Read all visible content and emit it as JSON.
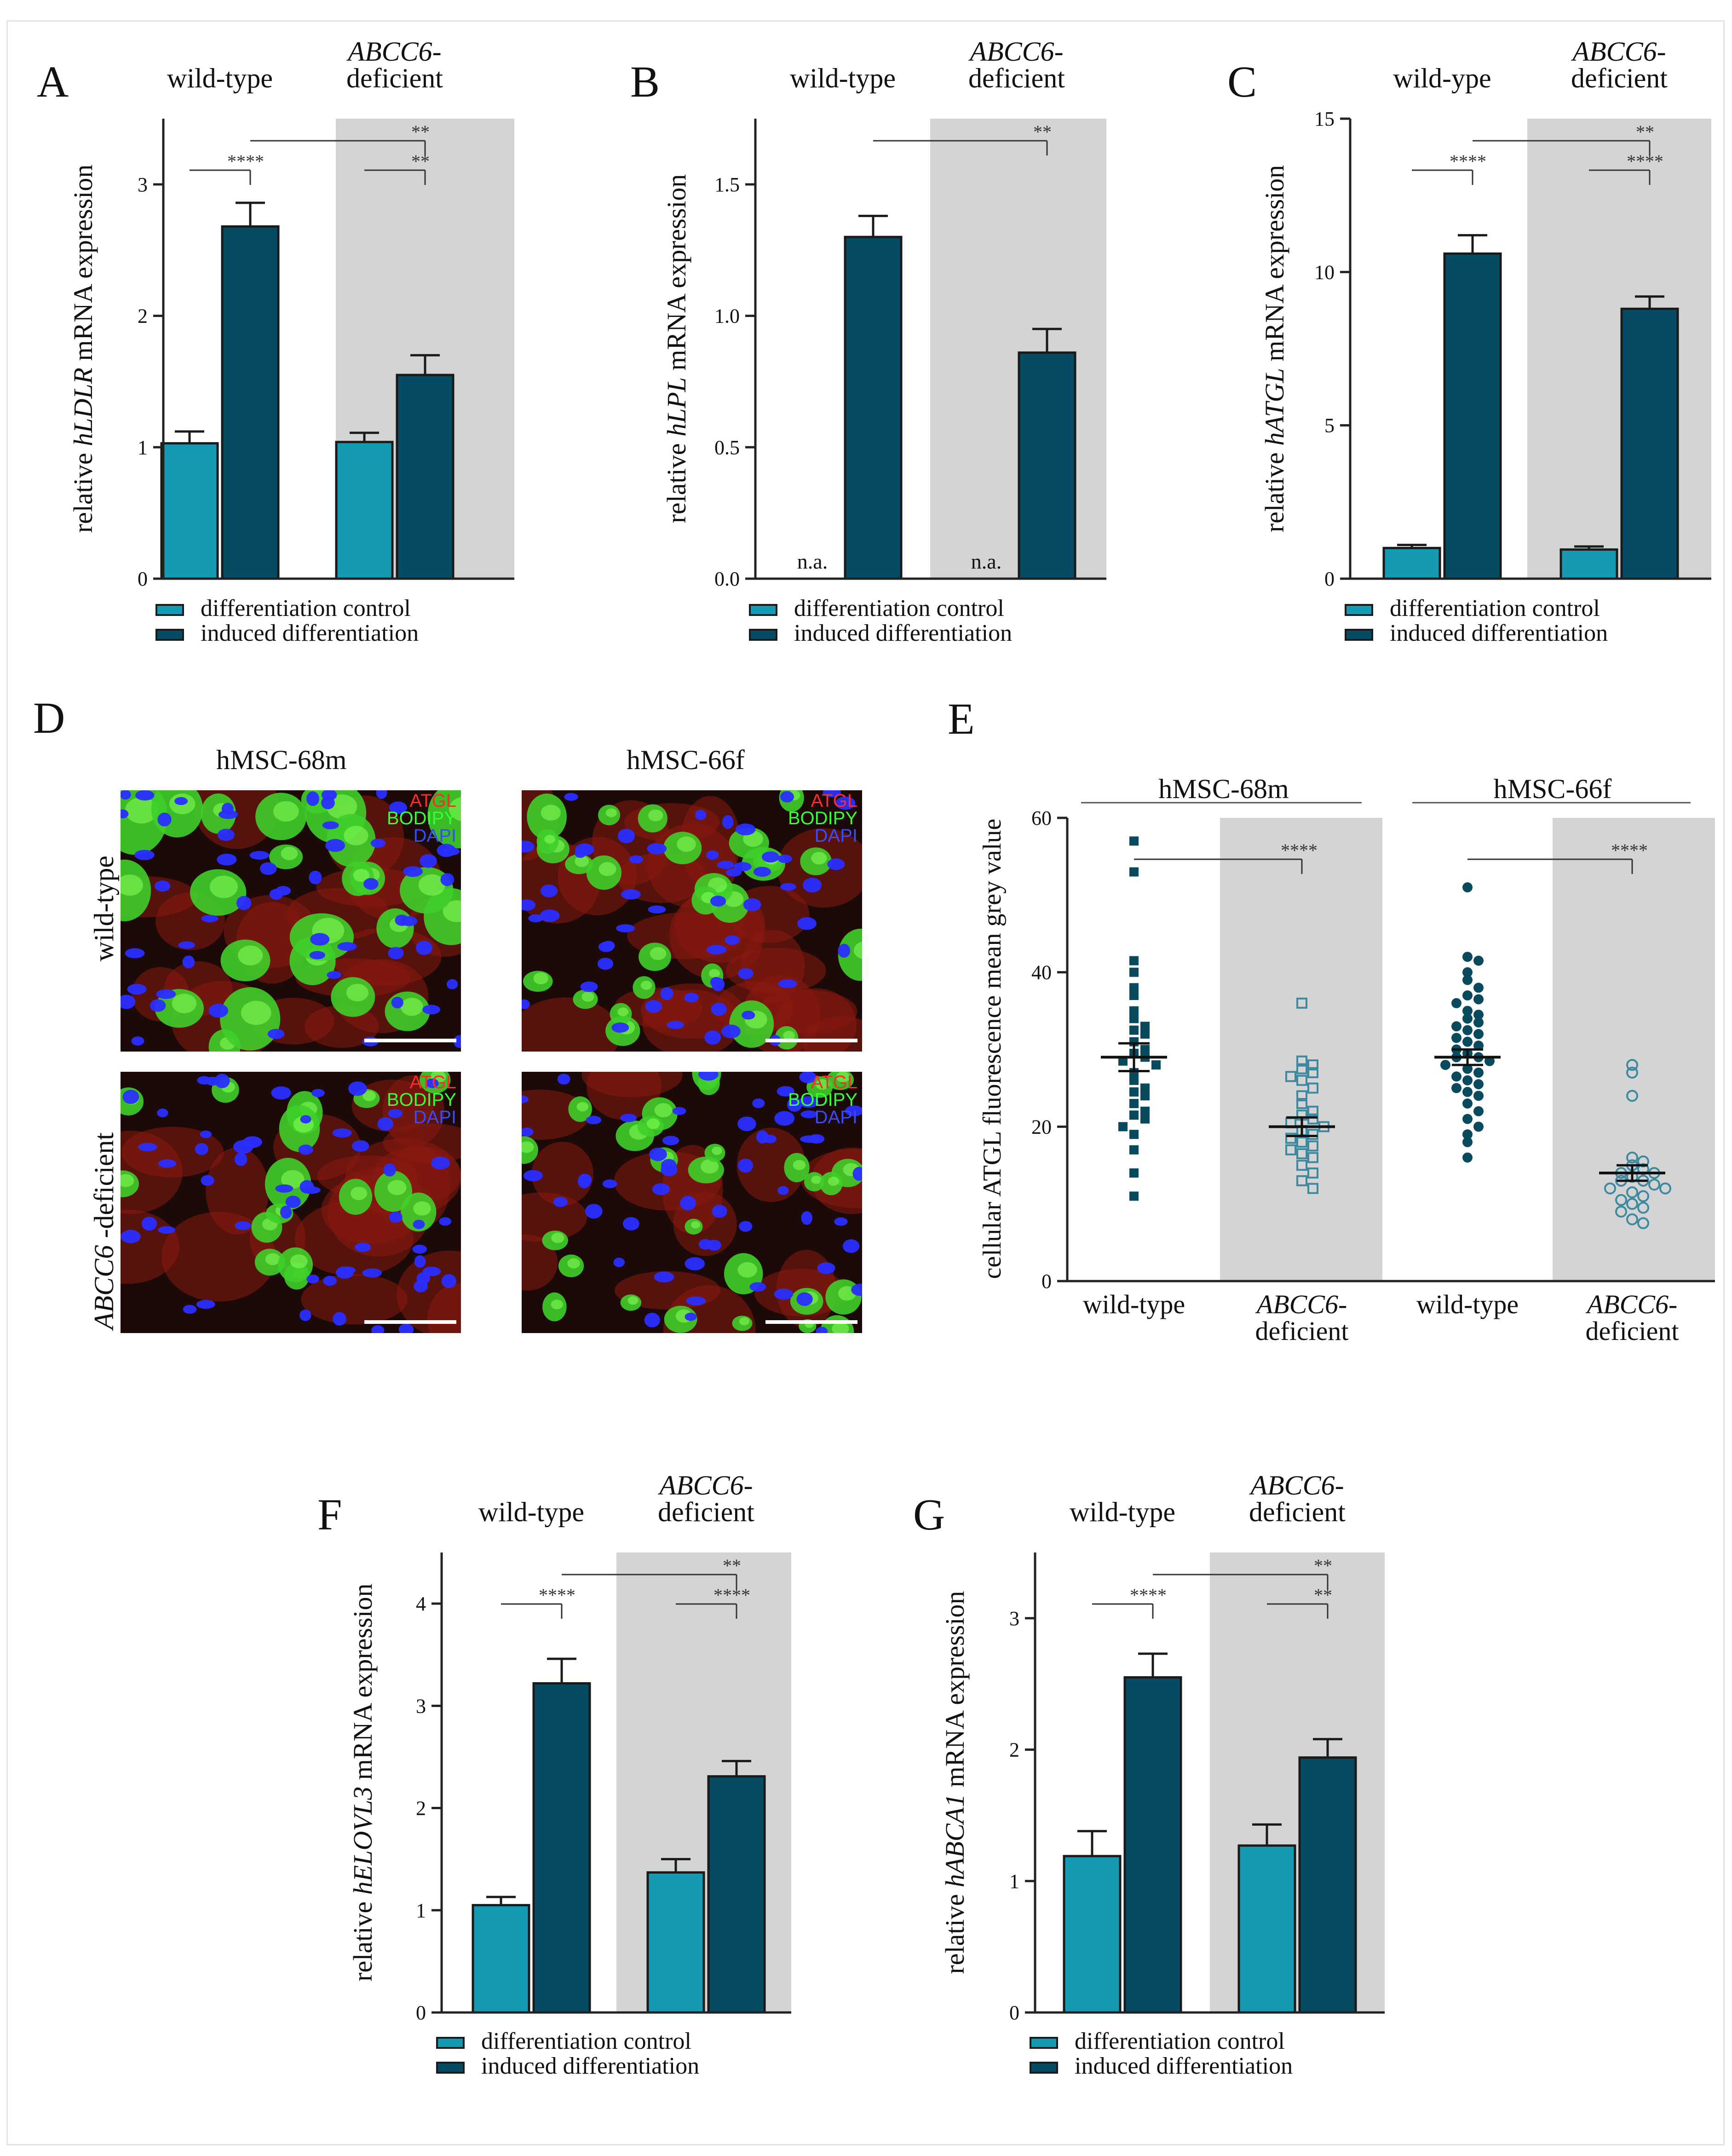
{
  "colors": {
    "control": "#159ab3",
    "induced": "#054b63",
    "shade": "#d4d4d4",
    "axis": "#222222",
    "dot": "#0a4a5e"
  },
  "legend": {
    "control": "differentiation control",
    "induced": "induced differentiation"
  },
  "panels": {
    "A": {
      "letter": "A",
      "ylabel_pre": "relative ",
      "gene": "hLDLR",
      "ylabel_post": " mRNA expression"
    },
    "B": {
      "letter": "B",
      "ylabel_pre": "relative ",
      "gene": "hLPL",
      "ylabel_post": " mRNA expression"
    },
    "C": {
      "letter": "C",
      "ylabel_pre": "relative ",
      "gene": "hATGL",
      "ylabel_post": " mRNA expression"
    },
    "D": {
      "letter": "D",
      "col1": "hMSC-68m",
      "col2": "hMSC-66f",
      "row1": "wild-type",
      "row2_gene": "ABCC6",
      "row2_rest": " -deficient",
      "stain1": "ATGL",
      "stain2": "BODIPY",
      "stain3": "DAPI"
    },
    "E": {
      "letter": "E"
    },
    "F": {
      "letter": "F",
      "ylabel_pre": "relative ",
      "gene": "hELOVL3",
      "ylabel_post": " mRNA expression"
    },
    "G": {
      "letter": "G",
      "ylabel_pre": "relative ",
      "gene": "hABCA1",
      "ylabel_post": " mRNA expression"
    }
  },
  "chart_data": [
    {
      "id": "A",
      "type": "bar",
      "groups": [
        {
          "label": "wild-type"
        },
        {
          "label_gene": "ABCC6-",
          "label_rest": "deficient"
        }
      ],
      "series": [
        {
          "name": "differentiation control",
          "values": [
            1.03,
            1.04
          ],
          "errors": [
            0.09,
            0.07
          ],
          "value_labels": [
            "",
            ""
          ]
        },
        {
          "name": "induced differentiation",
          "values": [
            2.68,
            1.55
          ],
          "errors": [
            0.18,
            0.15
          ],
          "value_labels": [
            "",
            ""
          ]
        }
      ],
      "ylim": [
        0,
        3.5
      ],
      "yticks": [
        0,
        1,
        2,
        3
      ],
      "tick_labels": [
        "0",
        "1",
        "2",
        "3"
      ],
      "significance": [
        {
          "from": "wt_ctrl",
          "to": "wt_ind",
          "label": "****"
        },
        {
          "from": "wt_ind",
          "to": "def_ind",
          "label": "**"
        },
        {
          "from": "def_ctrl",
          "to": "def_ind",
          "label": "**"
        }
      ]
    },
    {
      "id": "B",
      "type": "bar",
      "groups": [
        {
          "label": "wild-type"
        },
        {
          "label_gene": "ABCC6-",
          "label_rest": "deficient"
        }
      ],
      "series": [
        {
          "name": "differentiation control",
          "values": [
            0,
            0
          ],
          "errors": [
            0,
            0
          ],
          "value_labels": [
            "n.a.",
            "n.a."
          ]
        },
        {
          "name": "induced differentiation",
          "values": [
            1.3,
            0.86
          ],
          "errors": [
            0.08,
            0.09
          ],
          "value_labels": [
            "",
            ""
          ]
        }
      ],
      "ylim": [
        0,
        1.75
      ],
      "yticks": [
        0,
        0.5,
        1.0,
        1.5
      ],
      "tick_labels": [
        "0.0",
        "0.5",
        "1.0",
        "1.5"
      ],
      "significance": [
        {
          "from": "wt_ind",
          "to": "def_ind",
          "label": "**"
        }
      ]
    },
    {
      "id": "C",
      "type": "bar",
      "groups": [
        {
          "label": "wild-ype"
        },
        {
          "label_gene": "ABCC6-",
          "label_rest": "deficient"
        }
      ],
      "series": [
        {
          "name": "differentiation control",
          "values": [
            1.0,
            0.95
          ],
          "errors": [
            0.1,
            0.1
          ],
          "value_labels": [
            "",
            ""
          ]
        },
        {
          "name": "induced differentiation",
          "values": [
            10.6,
            8.8
          ],
          "errors": [
            0.6,
            0.4
          ],
          "value_labels": [
            "",
            ""
          ]
        }
      ],
      "ylim": [
        0,
        15
      ],
      "yticks": [
        0,
        5,
        10,
        15
      ],
      "tick_labels": [
        "0",
        "5",
        "10",
        "15"
      ],
      "significance": [
        {
          "from": "wt_ctrl",
          "to": "wt_ind",
          "label": "****"
        },
        {
          "from": "wt_ind",
          "to": "def_ind",
          "label": "**"
        },
        {
          "from": "def_ctrl",
          "to": "def_ind",
          "label": "****"
        }
      ]
    },
    {
      "id": "E",
      "type": "scatter",
      "title_groups": [
        "hMSC-68m",
        "hMSC-66f"
      ],
      "ylabel": "cellular ATGL fluorescence mean grey value",
      "categories": [
        {
          "label": "wild-type",
          "filled": true,
          "marker": "square",
          "mean": 29,
          "sem": 1.8,
          "values": [
            57,
            53,
            41.5,
            40,
            38,
            37,
            35,
            34,
            33,
            32.5,
            32,
            31,
            30,
            29.5,
            29,
            28.5,
            28,
            27,
            26,
            25,
            24.5,
            24,
            23,
            22,
            21.5,
            21,
            20,
            19,
            17,
            14,
            11
          ]
        },
        {
          "label_gene": "ABCC6-",
          "label_rest": "deficient",
          "filled": false,
          "marker": "square",
          "mean": 20,
          "sem": 1.2,
          "values": [
            36,
            28.5,
            28,
            27.5,
            27,
            26.5,
            26,
            25,
            24,
            23,
            22,
            21.5,
            21,
            20.5,
            20,
            19.5,
            19,
            18.5,
            18,
            17.5,
            17,
            16.5,
            16,
            15,
            14,
            13,
            12
          ]
        },
        {
          "label": "wild-type",
          "filled": true,
          "marker": "circle",
          "mean": 29,
          "sem": 1.0,
          "values": [
            51,
            42,
            41.5,
            40,
            39,
            38,
            37,
            36.5,
            36,
            35,
            34.5,
            34,
            33.5,
            33,
            32.5,
            32,
            31.5,
            31,
            30.5,
            30,
            29.5,
            29,
            29,
            28.5,
            28,
            27.5,
            27,
            26.5,
            26,
            25.5,
            25,
            24.5,
            24,
            23,
            22,
            21,
            20,
            19,
            18,
            16
          ]
        },
        {
          "label_gene": "ABCC6-",
          "label_rest": "deficient",
          "filled": false,
          "marker": "circle",
          "mean": 14,
          "sem": 1.0,
          "values": [
            28,
            27,
            24,
            16,
            15.5,
            15,
            14.5,
            14,
            14,
            13.5,
            13,
            13,
            12.5,
            12,
            12,
            11.5,
            11,
            10.5,
            10,
            9.5,
            9,
            8,
            7.5
          ]
        }
      ],
      "ylim": [
        0,
        60
      ],
      "yticks": [
        0,
        20,
        40,
        60
      ],
      "tick_labels": [
        "0",
        "20",
        "40",
        "60"
      ],
      "significance": [
        {
          "from": 0,
          "to": 1,
          "label": "****"
        },
        {
          "from": 2,
          "to": 3,
          "label": "****"
        }
      ]
    },
    {
      "id": "F",
      "type": "bar",
      "groups": [
        {
          "label": "wild-type"
        },
        {
          "label_gene": "ABCC6-",
          "label_rest": "deficient"
        }
      ],
      "series": [
        {
          "name": "differentiation control",
          "values": [
            1.05,
            1.37
          ],
          "errors": [
            0.08,
            0.13
          ],
          "value_labels": [
            "",
            ""
          ]
        },
        {
          "name": "induced differentiation",
          "values": [
            3.22,
            2.31
          ],
          "errors": [
            0.24,
            0.15
          ],
          "value_labels": [
            "",
            ""
          ]
        }
      ],
      "ylim": [
        0,
        4.5
      ],
      "yticks": [
        0,
        1,
        2,
        3,
        4
      ],
      "tick_labels": [
        "0",
        "1",
        "2",
        "3",
        "4"
      ],
      "significance": [
        {
          "from": "wt_ctrl",
          "to": "wt_ind",
          "label": "****"
        },
        {
          "from": "wt_ind",
          "to": "def_ind",
          "label": "**"
        },
        {
          "from": "def_ctrl",
          "to": "def_ind",
          "label": "****"
        }
      ]
    },
    {
      "id": "G",
      "type": "bar",
      "groups": [
        {
          "label": "wild-type"
        },
        {
          "label_gene": "ABCC6-",
          "label_rest": "deficient"
        }
      ],
      "series": [
        {
          "name": "differentiation control",
          "values": [
            1.19,
            1.27
          ],
          "errors": [
            0.19,
            0.16
          ],
          "value_labels": [
            "",
            ""
          ]
        },
        {
          "name": "induced differentiation",
          "values": [
            2.55,
            1.94
          ],
          "errors": [
            0.18,
            0.14
          ],
          "value_labels": [
            "",
            ""
          ]
        }
      ],
      "ylim": [
        0,
        3.5
      ],
      "yticks": [
        0,
        1,
        2,
        3
      ],
      "tick_labels": [
        "0",
        "1",
        "2",
        "3"
      ],
      "significance": [
        {
          "from": "wt_ctrl",
          "to": "wt_ind",
          "label": "****"
        },
        {
          "from": "wt_ind",
          "to": "def_ind",
          "label": "**"
        },
        {
          "from": "def_ctrl",
          "to": "def_ind",
          "label": "**"
        }
      ]
    }
  ]
}
